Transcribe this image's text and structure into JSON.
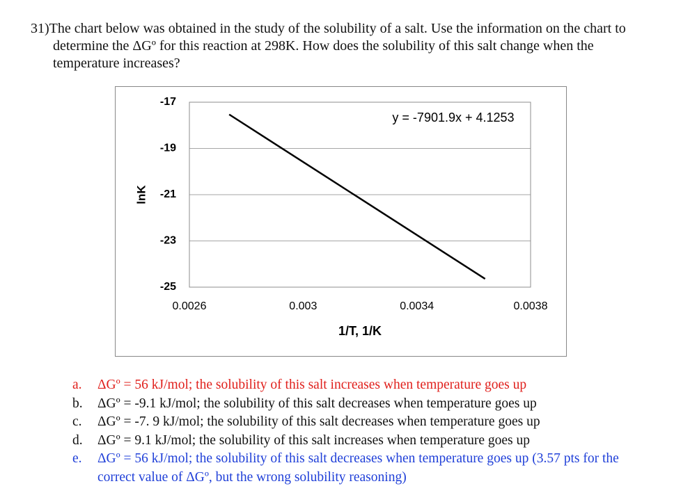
{
  "question": "31)The chart below was obtained in the study of the solubility of a salt. Use the information on the chart to determine the ΔGº for this reaction at 298K. How does the solubility of this salt change when the temperature increases?",
  "chart_data": {
    "type": "line",
    "equation": "y = -7901.9x + 4.1253",
    "xlabel": "1/T, 1/K",
    "ylabel": "lnK",
    "x": [
      0.00274,
      0.00364
    ],
    "values": [
      -17.53,
      -24.64
    ],
    "color": "#000000",
    "xlim": [
      0.0026,
      0.0038
    ],
    "xticks": [
      0.0026,
      0.003,
      0.0034,
      0.0038
    ],
    "ylim": [
      -25,
      -17
    ],
    "yticks": [
      -17,
      -19,
      -21,
      -23,
      -25
    ],
    "grid": true
  },
  "options": [
    {
      "letter": "a.",
      "text": "ΔGº = 56 kJ/mol; the solubility of this salt increases when temperature goes up"
    },
    {
      "letter": "b.",
      "text": "ΔGº = -9.1 kJ/mol; the solubility of this salt decreases when temperature goes up"
    },
    {
      "letter": "c.",
      "text": "ΔGº = -7. 9 kJ/mol; the solubility of this salt decreases when temperature goes up"
    },
    {
      "letter": "d.",
      "text": "ΔGº = 9.1 kJ/mol; the solubility of this salt increases when temperature goes up"
    },
    {
      "letter": "e.",
      "text": "ΔGº = 56 kJ/mol; the solubility of this salt decreases when temperature goes up (3.57 pts for the correct value of ΔGº, but the wrong solubility reasoning)"
    }
  ]
}
